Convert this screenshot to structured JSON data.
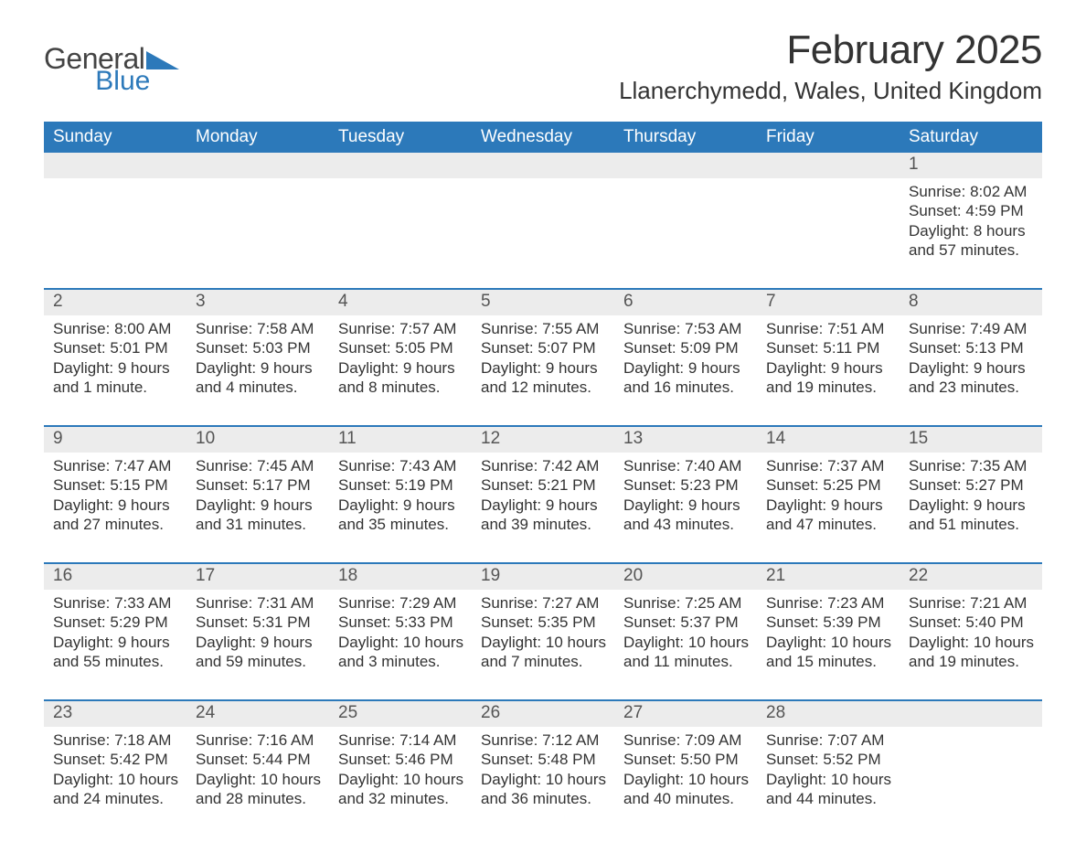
{
  "logo": {
    "general": "General",
    "blue": "Blue"
  },
  "title": {
    "month": "February 2025",
    "location": "Llanerchymedd, Wales, United Kingdom"
  },
  "colors": {
    "accent": "#2c79ba",
    "headerText": "#ffffff",
    "dayNumBg": "#ececec",
    "body": "#333333"
  },
  "table": {
    "type": "calendar",
    "days": [
      "Sunday",
      "Monday",
      "Tuesday",
      "Wednesday",
      "Thursday",
      "Friday",
      "Saturday"
    ],
    "weeks": [
      [
        null,
        null,
        null,
        null,
        null,
        null,
        {
          "n": "1",
          "sunrise": "Sunrise: 8:02 AM",
          "sunset": "Sunset: 4:59 PM",
          "dayl1": "Daylight: 8 hours",
          "dayl2": "and 57 minutes."
        }
      ],
      [
        {
          "n": "2",
          "sunrise": "Sunrise: 8:00 AM",
          "sunset": "Sunset: 5:01 PM",
          "dayl1": "Daylight: 9 hours",
          "dayl2": "and 1 minute."
        },
        {
          "n": "3",
          "sunrise": "Sunrise: 7:58 AM",
          "sunset": "Sunset: 5:03 PM",
          "dayl1": "Daylight: 9 hours",
          "dayl2": "and 4 minutes."
        },
        {
          "n": "4",
          "sunrise": "Sunrise: 7:57 AM",
          "sunset": "Sunset: 5:05 PM",
          "dayl1": "Daylight: 9 hours",
          "dayl2": "and 8 minutes."
        },
        {
          "n": "5",
          "sunrise": "Sunrise: 7:55 AM",
          "sunset": "Sunset: 5:07 PM",
          "dayl1": "Daylight: 9 hours",
          "dayl2": "and 12 minutes."
        },
        {
          "n": "6",
          "sunrise": "Sunrise: 7:53 AM",
          "sunset": "Sunset: 5:09 PM",
          "dayl1": "Daylight: 9 hours",
          "dayl2": "and 16 minutes."
        },
        {
          "n": "7",
          "sunrise": "Sunrise: 7:51 AM",
          "sunset": "Sunset: 5:11 PM",
          "dayl1": "Daylight: 9 hours",
          "dayl2": "and 19 minutes."
        },
        {
          "n": "8",
          "sunrise": "Sunrise: 7:49 AM",
          "sunset": "Sunset: 5:13 PM",
          "dayl1": "Daylight: 9 hours",
          "dayl2": "and 23 minutes."
        }
      ],
      [
        {
          "n": "9",
          "sunrise": "Sunrise: 7:47 AM",
          "sunset": "Sunset: 5:15 PM",
          "dayl1": "Daylight: 9 hours",
          "dayl2": "and 27 minutes."
        },
        {
          "n": "10",
          "sunrise": "Sunrise: 7:45 AM",
          "sunset": "Sunset: 5:17 PM",
          "dayl1": "Daylight: 9 hours",
          "dayl2": "and 31 minutes."
        },
        {
          "n": "11",
          "sunrise": "Sunrise: 7:43 AM",
          "sunset": "Sunset: 5:19 PM",
          "dayl1": "Daylight: 9 hours",
          "dayl2": "and 35 minutes."
        },
        {
          "n": "12",
          "sunrise": "Sunrise: 7:42 AM",
          "sunset": "Sunset: 5:21 PM",
          "dayl1": "Daylight: 9 hours",
          "dayl2": "and 39 minutes."
        },
        {
          "n": "13",
          "sunrise": "Sunrise: 7:40 AM",
          "sunset": "Sunset: 5:23 PM",
          "dayl1": "Daylight: 9 hours",
          "dayl2": "and 43 minutes."
        },
        {
          "n": "14",
          "sunrise": "Sunrise: 7:37 AM",
          "sunset": "Sunset: 5:25 PM",
          "dayl1": "Daylight: 9 hours",
          "dayl2": "and 47 minutes."
        },
        {
          "n": "15",
          "sunrise": "Sunrise: 7:35 AM",
          "sunset": "Sunset: 5:27 PM",
          "dayl1": "Daylight: 9 hours",
          "dayl2": "and 51 minutes."
        }
      ],
      [
        {
          "n": "16",
          "sunrise": "Sunrise: 7:33 AM",
          "sunset": "Sunset: 5:29 PM",
          "dayl1": "Daylight: 9 hours",
          "dayl2": "and 55 minutes."
        },
        {
          "n": "17",
          "sunrise": "Sunrise: 7:31 AM",
          "sunset": "Sunset: 5:31 PM",
          "dayl1": "Daylight: 9 hours",
          "dayl2": "and 59 minutes."
        },
        {
          "n": "18",
          "sunrise": "Sunrise: 7:29 AM",
          "sunset": "Sunset: 5:33 PM",
          "dayl1": "Daylight: 10 hours",
          "dayl2": "and 3 minutes."
        },
        {
          "n": "19",
          "sunrise": "Sunrise: 7:27 AM",
          "sunset": "Sunset: 5:35 PM",
          "dayl1": "Daylight: 10 hours",
          "dayl2": "and 7 minutes."
        },
        {
          "n": "20",
          "sunrise": "Sunrise: 7:25 AM",
          "sunset": "Sunset: 5:37 PM",
          "dayl1": "Daylight: 10 hours",
          "dayl2": "and 11 minutes."
        },
        {
          "n": "21",
          "sunrise": "Sunrise: 7:23 AM",
          "sunset": "Sunset: 5:39 PM",
          "dayl1": "Daylight: 10 hours",
          "dayl2": "and 15 minutes."
        },
        {
          "n": "22",
          "sunrise": "Sunrise: 7:21 AM",
          "sunset": "Sunset: 5:40 PM",
          "dayl1": "Daylight: 10 hours",
          "dayl2": "and 19 minutes."
        }
      ],
      [
        {
          "n": "23",
          "sunrise": "Sunrise: 7:18 AM",
          "sunset": "Sunset: 5:42 PM",
          "dayl1": "Daylight: 10 hours",
          "dayl2": "and 24 minutes."
        },
        {
          "n": "24",
          "sunrise": "Sunrise: 7:16 AM",
          "sunset": "Sunset: 5:44 PM",
          "dayl1": "Daylight: 10 hours",
          "dayl2": "and 28 minutes."
        },
        {
          "n": "25",
          "sunrise": "Sunrise: 7:14 AM",
          "sunset": "Sunset: 5:46 PM",
          "dayl1": "Daylight: 10 hours",
          "dayl2": "and 32 minutes."
        },
        {
          "n": "26",
          "sunrise": "Sunrise: 7:12 AM",
          "sunset": "Sunset: 5:48 PM",
          "dayl1": "Daylight: 10 hours",
          "dayl2": "and 36 minutes."
        },
        {
          "n": "27",
          "sunrise": "Sunrise: 7:09 AM",
          "sunset": "Sunset: 5:50 PM",
          "dayl1": "Daylight: 10 hours",
          "dayl2": "and 40 minutes."
        },
        {
          "n": "28",
          "sunrise": "Sunrise: 7:07 AM",
          "sunset": "Sunset: 5:52 PM",
          "dayl1": "Daylight: 10 hours",
          "dayl2": "and 44 minutes."
        },
        null
      ]
    ]
  }
}
